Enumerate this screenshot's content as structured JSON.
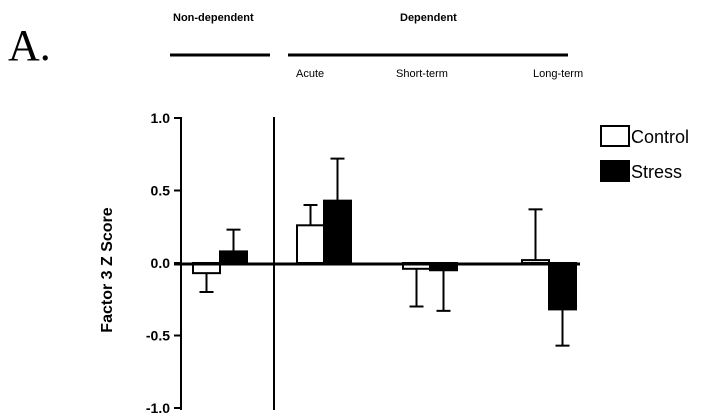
{
  "panel_label": "A.",
  "groups": {
    "non_dependent": "Non-dependent",
    "dependent": "Dependent"
  },
  "conditions": {
    "acute": "Acute",
    "short_term": "Short-term",
    "long_term": "Long-term"
  },
  "chart_data": {
    "type": "bar",
    "categories": [
      "Non-dependent",
      "Acute",
      "Short-term",
      "Long-term"
    ],
    "series": [
      {
        "name": "Control",
        "values": [
          -0.07,
          0.26,
          -0.04,
          0.02
        ],
        "errors": [
          0.13,
          0.14,
          0.26,
          0.35
        ]
      },
      {
        "name": "Stress",
        "values": [
          0.08,
          0.43,
          -0.05,
          -0.32
        ],
        "errors": [
          0.15,
          0.29,
          0.28,
          0.25
        ]
      }
    ],
    "ylabel": "Factor 3 Z Score",
    "ylim": [
      -1.0,
      1.0
    ],
    "yticks": [
      "1.0",
      "0.5",
      "0.0",
      "-0.5",
      "-1.0"
    ],
    "legend_position": "top-right",
    "colors": {
      "Control": "#ffffff",
      "Stress": "#000000",
      "outline": "#000000"
    }
  }
}
